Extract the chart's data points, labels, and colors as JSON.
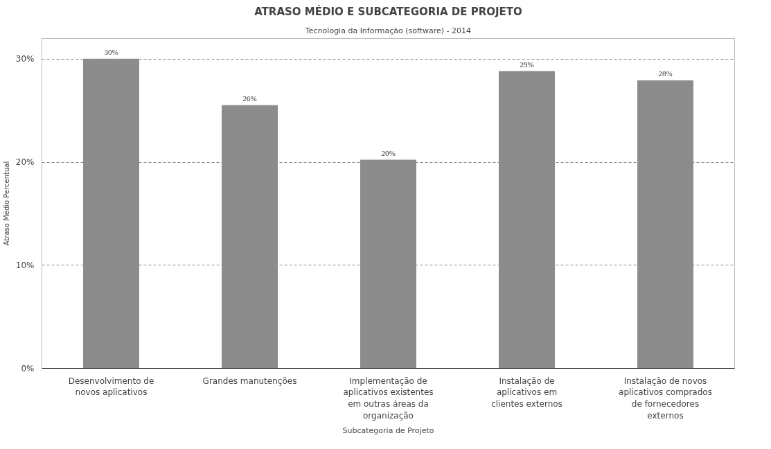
{
  "chart_data": {
    "type": "bar",
    "title": "ATRASO MÉDIO E SUBCATEGORIA DE PROJETO",
    "subtitle": "Tecnologia da Informação (software) - 2014",
    "xlabel": "Subcategoria de Projeto",
    "ylabel": "Atraso Médio Percentual",
    "categories": [
      "Desenvolvimento de novos aplicativos",
      "Grandes manutenções",
      "Implementação de aplicativos existentes em outras áreas da organização",
      "Instalação de aplicativos em clientes externos",
      "Instalação de novos aplicativos comprados de fornecedores externos"
    ],
    "values": [
      30,
      25.5,
      20.2,
      28.8,
      27.9
    ],
    "value_labels": [
      "30%",
      "26%",
      "20%",
      "29%",
      "28%"
    ],
    "color": "#8c8c8c",
    "ylim": [
      0,
      32
    ],
    "yticks": [
      {
        "value": 0,
        "label": "0%"
      },
      {
        "value": 10,
        "label": "10%"
      },
      {
        "value": 20,
        "label": "20%"
      },
      {
        "value": 30,
        "label": "30%"
      }
    ],
    "grid": "y"
  }
}
